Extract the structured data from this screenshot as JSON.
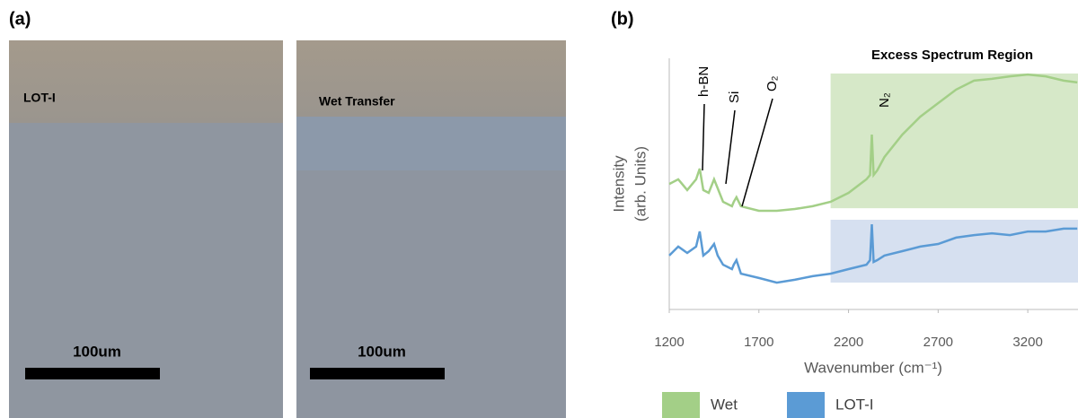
{
  "panel_a": {
    "label": "(a)",
    "images": [
      {
        "caption": "LOT-I",
        "scale_bar": "100um"
      },
      {
        "caption": "Wet Transfer",
        "scale_bar": "100um"
      }
    ]
  },
  "chart_data": {
    "type": "line",
    "panel_label": "(b)",
    "x_label": "Wavenumber (cm⁻¹)",
    "y_label": [
      "Intensity",
      "(arb. Units)"
    ],
    "x": [
      1200,
      1250,
      1300,
      1350,
      1370,
      1390,
      1420,
      1450,
      1470,
      1500,
      1550,
      1560,
      1575,
      1600,
      1700,
      1800,
      1900,
      2000,
      2100,
      2200,
      2300,
      2320,
      2330,
      2340,
      2360,
      2400,
      2500,
      2600,
      2700,
      2800,
      2900,
      3000,
      3100,
      3200,
      3300,
      3400,
      3476
    ],
    "series": [
      {
        "name": "Wet",
        "color": "#a3cf87",
        "values": [
          49.1,
          50.9,
          46.7,
          50.9,
          55.1,
          46.7,
          45.6,
          50.9,
          47.4,
          42.1,
          40.4,
          42.1,
          43.9,
          40.4,
          38.6,
          38.6,
          39.3,
          40.4,
          42.1,
          45.6,
          50.9,
          52.6,
          68.4,
          52.6,
          54.4,
          59.6,
          68.4,
          75.4,
          80.7,
          86.0,
          89.5,
          90.2,
          91.2,
          91.9,
          91.2,
          89.5,
          88.8
        ]
      },
      {
        "name": "LOT-I",
        "color": "#5b9bd5",
        "values": [
          21.1,
          24.6,
          22.1,
          24.6,
          30.5,
          21.1,
          22.8,
          25.6,
          21.1,
          17.5,
          15.8,
          17.5,
          19.3,
          14.0,
          12.3,
          10.5,
          11.6,
          13.0,
          14.0,
          15.8,
          17.5,
          19.3,
          33.3,
          18.6,
          19.3,
          21.1,
          22.8,
          24.6,
          25.6,
          28.1,
          29.1,
          29.8,
          29.1,
          30.5,
          30.5,
          31.6,
          31.6
        ]
      }
    ],
    "regions": [
      {
        "x0": 2100,
        "y0": 39.6,
        "y1": 92.3,
        "color": "#d6e8c8"
      },
      {
        "x0": 2100,
        "y0": 10.5,
        "y1": 35.1,
        "color": "#d6e0f0"
      }
    ],
    "region_label": "Excess Spectrum Region",
    "annotations": [
      "h-BN",
      "Si",
      "O₂",
      "N₂"
    ],
    "xlim": [
      1200,
      3480
    ],
    "ylim": [
      0,
      100
    ],
    "xticks": [
      1200,
      1700,
      2200,
      2700,
      3200
    ]
  }
}
